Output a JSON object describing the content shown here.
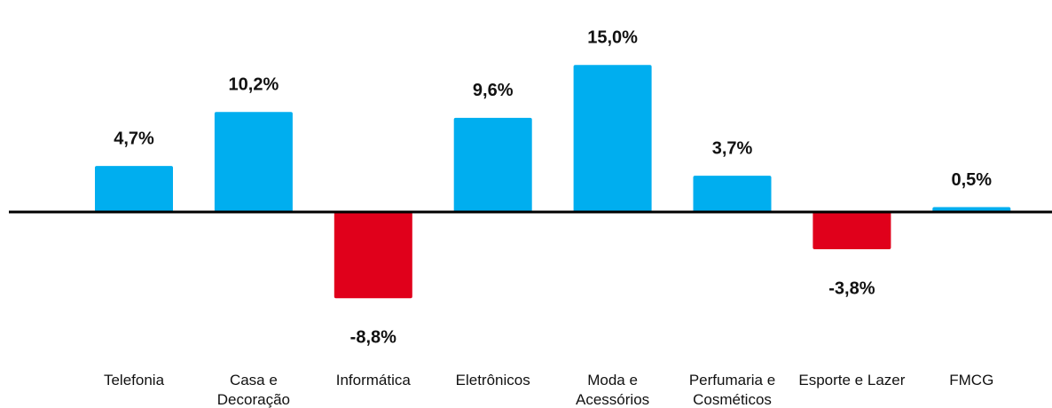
{
  "chart_data": {
    "type": "bar",
    "categories": [
      "Telefonia",
      "Casa e Decoração",
      "Informática",
      "Eletrônicos",
      "Moda e Acessórios",
      "Perfumaria e Cosméticos",
      "Esporte e Lazer",
      "FMCG"
    ],
    "values": [
      4.7,
      10.2,
      -8.8,
      9.6,
      15.0,
      3.7,
      -3.8,
      0.5
    ],
    "value_labels": [
      "4,7%",
      "10,2%",
      "-8,8%",
      "9,6%",
      "15,0%",
      "3,7%",
      "-3,8%",
      "0,5%"
    ],
    "color": "#00aeef",
    "negative_color": "#e0001b"
  }
}
